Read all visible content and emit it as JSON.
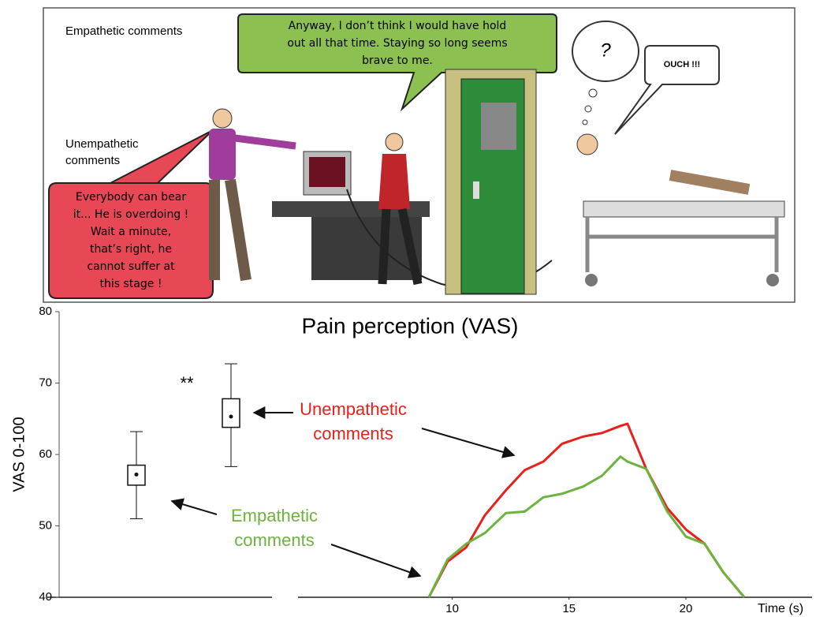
{
  "illustration": {
    "empathetic_label": "Empathetic comments",
    "unempathetic_label": [
      "Unempathetic",
      "comments"
    ],
    "green_bubble": [
      "Anyway, I don’t think I would have hold",
      "out all that time. Staying so long seems",
      "brave to me."
    ],
    "red_bubble": [
      "Everybody can bear",
      "it... He is overdoing !",
      "Wait a minute,",
      "that’s right, he",
      "cannot suffer at",
      "this stage !"
    ],
    "thought": "?",
    "shout": "OUCH !!!"
  },
  "chart_data": {
    "type": "line",
    "title": "Pain perception (VAS)",
    "ylabel": "VAS 0-100",
    "xlabel": "Time (s)",
    "ylim": [
      40,
      80
    ],
    "yticks": [
      40,
      50,
      60,
      70,
      80
    ],
    "xlim": [
      3.4,
      25.4
    ],
    "xticks": [
      10,
      15,
      20
    ],
    "x": [
      9.0,
      9.8,
      10.6,
      11.4,
      12.3,
      13.1,
      13.9,
      14.7,
      15.6,
      16.4,
      17.2,
      17.5,
      18.3,
      19.2,
      20.0,
      20.8,
      21.6,
      22.5
    ],
    "series": [
      {
        "name": [
          "Unempathetic",
          "comments"
        ],
        "color": "#e8201c",
        "values": [
          40,
          45,
          47,
          51.5,
          55,
          57.8,
          59,
          61.5,
          62.5,
          63,
          64,
          64.3,
          58,
          52.5,
          49.5,
          47.5,
          43.5,
          40
        ]
      },
      {
        "name": [
          "Empathetic",
          "comments"
        ],
        "color": "#6db33f",
        "values": [
          40,
          45.3,
          47.5,
          49,
          51.8,
          52,
          54,
          54.5,
          55.5,
          57,
          59.7,
          59,
          58,
          52,
          48.5,
          47.5,
          43.5,
          40
        ]
      }
    ],
    "boxes": [
      {
        "low": 51,
        "q1": 55.7,
        "mean": 57.2,
        "q3": 58.5,
        "high": 63.2
      },
      {
        "low": 58.3,
        "q1": 63.8,
        "mean": 65.3,
        "q3": 67.8,
        "high": 72.7
      }
    ],
    "significance": "**"
  }
}
